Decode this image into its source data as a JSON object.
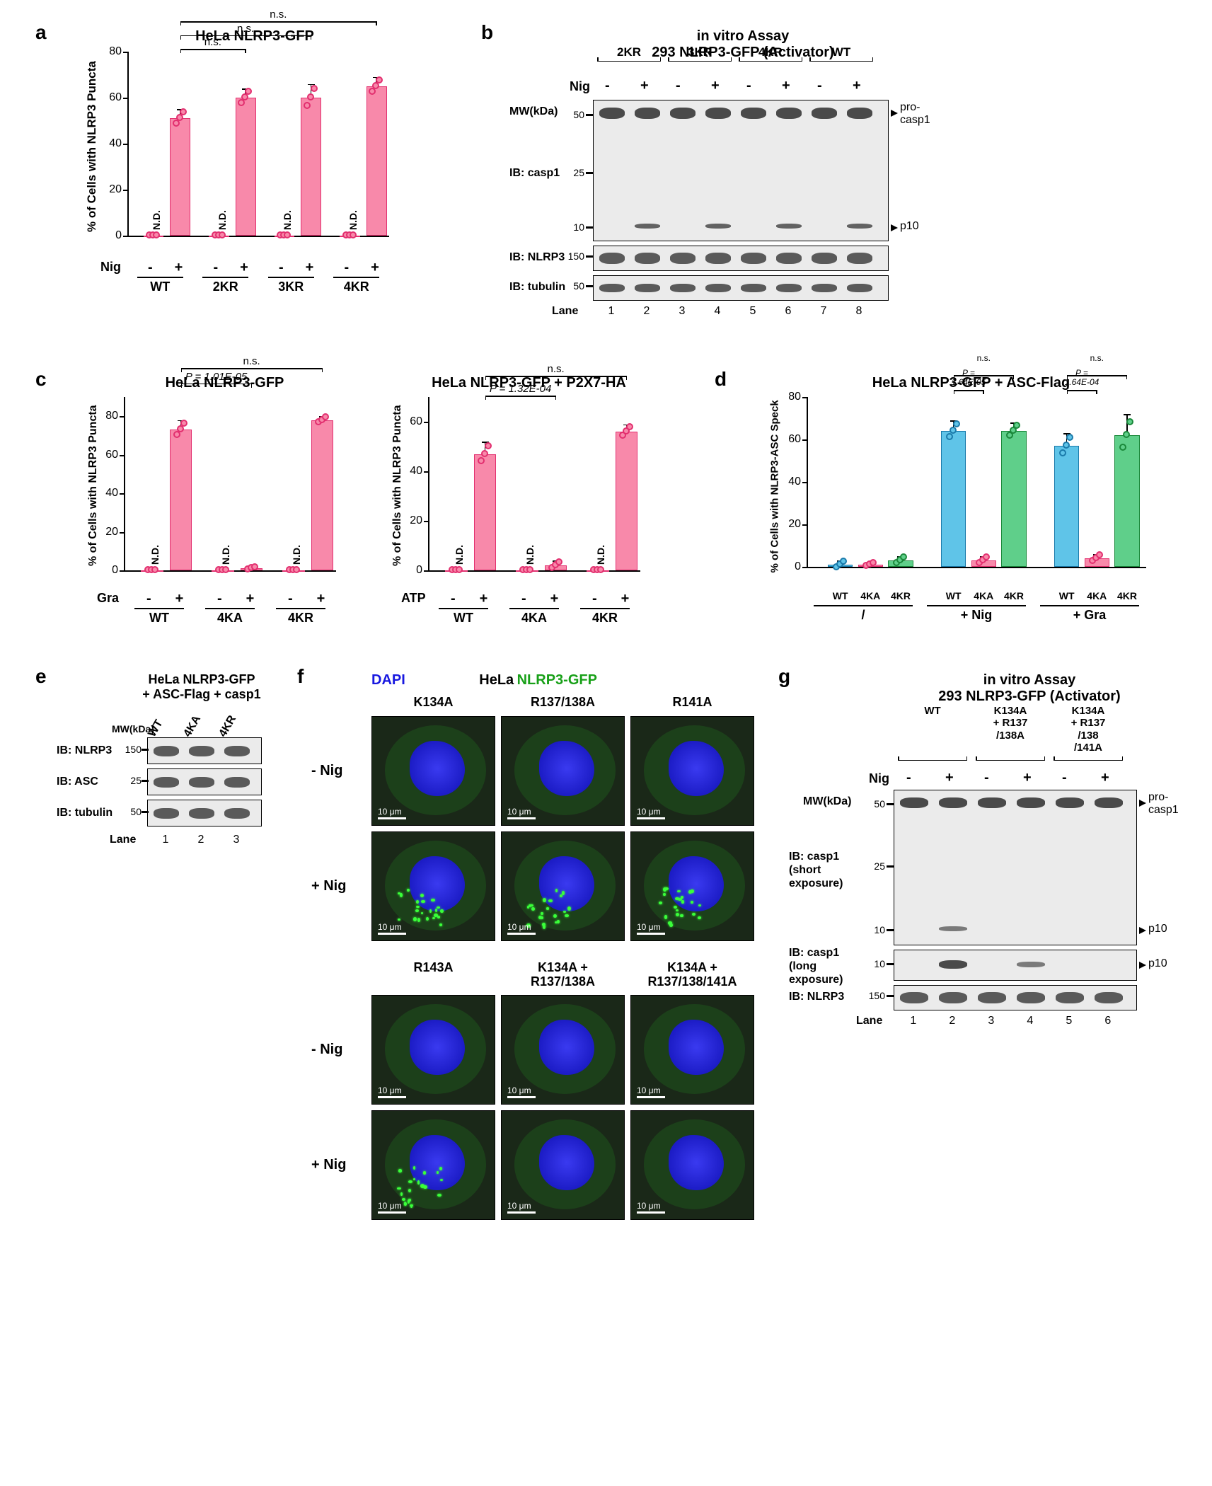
{
  "colors": {
    "pink_fill": "#f889aa",
    "pink_stroke": "#e22f6f",
    "blue_fill": "#5fc4e8",
    "blue_stroke": "#1a7aaa",
    "green_fill": "#5fcf8a",
    "green_stroke": "#1a883a"
  },
  "panel_a": {
    "label": "a",
    "title": "HeLa NLRP3-GFP",
    "y_axis": "% of Cells with NLRP3 Puncta",
    "ylim": [
      0,
      80
    ],
    "ytick_step": 20,
    "groups": [
      "WT",
      "2KR",
      "3KR",
      "4KR"
    ],
    "treat_title": "Nig",
    "signs": [
      "-",
      "+",
      "-",
      "+",
      "-",
      "+",
      "-",
      "+"
    ],
    "bar_values": [
      0,
      51,
      0,
      60,
      0,
      60,
      0,
      65
    ],
    "nd_positions": [
      0,
      2,
      4,
      6
    ],
    "errors": [
      0,
      4,
      0,
      4,
      0,
      6,
      0,
      4
    ],
    "stats": [
      {
        "from": 1,
        "to": 3,
        "text": "n.s.",
        "y": 72
      },
      {
        "from": 1,
        "to": 5,
        "text": "n.s.",
        "y": 78
      },
      {
        "from": 1,
        "to": 7,
        "text": "n.s.",
        "y": 84
      }
    ]
  },
  "panel_b": {
    "label": "b",
    "title1": "in vitro Assay",
    "title2": "293 NLRP3-GFP (Activator)",
    "constructs": [
      "2KR",
      "3KR",
      "4KR",
      "WT"
    ],
    "nig_label": "Nig",
    "signs": [
      "-",
      "+",
      "-",
      "+",
      "-",
      "+",
      "-",
      "+"
    ],
    "mw_label": "MW(kDa)",
    "mw_marks_casp1": [
      "50",
      "25",
      "10"
    ],
    "ib_labels": [
      "IB: casp1",
      "IB: NLRP3",
      "IB: tubulin"
    ],
    "arrow_labels": [
      "pro-casp1",
      "p10"
    ],
    "nlrp3_mw": "150",
    "tubulin_mw": "50",
    "lane_label": "Lane",
    "lanes": [
      "1",
      "2",
      "3",
      "4",
      "5",
      "6",
      "7",
      "8"
    ]
  },
  "panel_c": {
    "label": "c",
    "chart1_title": "HeLa NLRP3-GFP",
    "chart2_title": "HeLa NLRP3-GFP + P2X7-HA",
    "y_axis": "% of Cells with NLRP3 Puncta",
    "ylim": [
      0,
      90
    ],
    "ytick_step1": 20,
    "ytick_step2": 20,
    "ylim2": [
      0,
      70
    ],
    "groups": [
      "WT",
      "4KA",
      "4KR"
    ],
    "treat1": "Gra",
    "treat2": "ATP",
    "signs": [
      "-",
      "+",
      "-",
      "+",
      "-",
      "+"
    ],
    "c1_values": [
      0,
      73,
      0,
      1,
      0,
      78
    ],
    "c1_errors": [
      0,
      5,
      0,
      1,
      0,
      2
    ],
    "c1_nd": [
      0,
      2,
      4
    ],
    "c1_stats": [
      {
        "from": 1,
        "to": 3,
        "text": "P = 1.01E-05",
        "y": 86,
        "italic": true
      },
      {
        "from": 1,
        "to": 5,
        "text": "n.s.",
        "y": 94
      }
    ],
    "c2_values": [
      0,
      47,
      0,
      2,
      0,
      56
    ],
    "c2_errors": [
      0,
      5,
      0,
      2,
      0,
      3
    ],
    "c2_nd": [
      0,
      2,
      4
    ],
    "c2_stats": [
      {
        "from": 1,
        "to": 3,
        "text": "P = 1.32E-04",
        "y": 62,
        "italic": true
      },
      {
        "from": 1,
        "to": 5,
        "text": "n.s.",
        "y": 70
      }
    ]
  },
  "panel_d": {
    "label": "d",
    "title": "HeLa NLRP3-GFP + ASC-Flag",
    "y_axis": "% of Cells with NLRP3-ASC Speck",
    "ylim": [
      0,
      80
    ],
    "ytick_step": 20,
    "super_groups": [
      "/",
      "+ Nig",
      "+ Gra"
    ],
    "sub_groups": [
      "WT",
      "4KA",
      "4KR"
    ],
    "colors": [
      "blue",
      "pink",
      "green"
    ],
    "values": [
      1,
      1,
      3,
      64,
      3,
      64,
      57,
      4,
      62
    ],
    "errors": [
      2,
      1,
      2,
      5,
      2,
      4,
      6,
      2,
      10
    ],
    "stats": [
      {
        "group": 1,
        "pair": [
          0,
          1
        ],
        "text": "P =\n1.64E-05",
        "y": 75
      },
      {
        "group": 1,
        "pair": [
          0,
          2
        ],
        "text": "n.s.",
        "y": 82
      },
      {
        "group": 2,
        "pair": [
          0,
          1
        ],
        "text": "P =\n1.64E-04",
        "y": 75
      },
      {
        "group": 2,
        "pair": [
          0,
          2
        ],
        "text": "n.s.",
        "y": 82
      }
    ]
  },
  "panel_e": {
    "label": "e",
    "title1": "HeLa NLRP3-GFP",
    "title2": "+ ASC-Flag + casp1",
    "constructs": [
      "WT",
      "4KA",
      "4KR"
    ],
    "mw_label": "MW(kDa)",
    "ib_labels": [
      "IB: NLRP3",
      "IB: ASC",
      "IB: tubulin"
    ],
    "mw_marks": [
      "150",
      "25",
      "50"
    ],
    "lane_label": "Lane",
    "lanes": [
      "1",
      "2",
      "3"
    ]
  },
  "panel_f": {
    "label": "f",
    "dapi": "DAPI",
    "title": "HeLa",
    "gfp": "NLRP3-GFP",
    "row_labels_top": [
      "- Nig",
      "+ Nig"
    ],
    "row_labels_bot": [
      "- Nig",
      "+ Nig"
    ],
    "cols_top": [
      "K134A",
      "R137/138A",
      "R141A"
    ],
    "cols_bot": [
      "R143A",
      "K134A +\nR137/138A",
      "K134A +\nR137/138/141A"
    ],
    "scale": "10 μm",
    "puncta_pattern": [
      [
        false,
        false,
        false
      ],
      [
        true,
        true,
        true
      ],
      [
        false,
        false,
        false
      ],
      [
        true,
        false,
        false
      ]
    ]
  },
  "panel_g": {
    "label": "g",
    "title1": "in vitro Assay",
    "title2": "293 NLRP3-GFP (Activator)",
    "constructs": [
      "WT",
      "K134A\n+ R137\n/138A",
      "K134A\n+ R137\n/138\n/141A"
    ],
    "nig_label": "Nig",
    "signs": [
      "-",
      "+",
      "-",
      "+",
      "-",
      "+"
    ],
    "mw_label": "MW(kDa)",
    "ib1": "IB: casp1\n(short\nexposure)",
    "ib2": "IB: casp1\n(long\nexposure)",
    "ib3": "IB: NLRP3",
    "mw_marks": [
      "50",
      "25",
      "10"
    ],
    "mw_long": "10",
    "mw_nlrp3": "150",
    "arrows": [
      "pro-casp1",
      "p10",
      "p10"
    ],
    "lane_label": "Lane",
    "lanes": [
      "1",
      "2",
      "3",
      "4",
      "5",
      "6"
    ]
  }
}
